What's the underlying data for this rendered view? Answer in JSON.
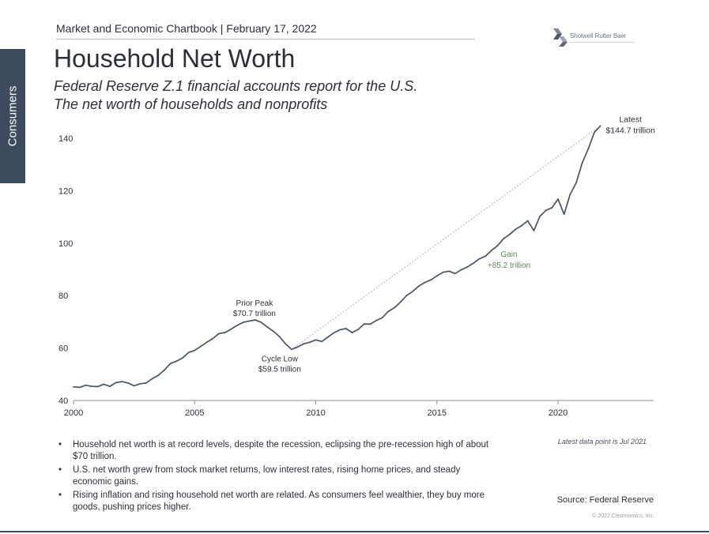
{
  "header": {
    "kicker": "Market and Economic Chartbook | February 17, 2022",
    "logo_text": "Shotwell Rutter Baer",
    "side_tab": "Consumers"
  },
  "title": "Household Net Worth",
  "subtitle_line1": "Federal Reserve Z.1 financial accounts report for the U.S.",
  "subtitle_line2": "The net worth of households and nonprofits",
  "chart_data": {
    "type": "line",
    "xlim": [
      2000,
      2024
    ],
    "ylim": [
      40,
      150
    ],
    "x_ticks": [
      "2000",
      "2005",
      "2010",
      "2015",
      "2020"
    ],
    "y_ticks": [
      "40",
      "60",
      "80",
      "100",
      "120",
      "140"
    ],
    "grid": false,
    "series": [
      {
        "color": "#4a5464",
        "points": [
          [
            2000.0,
            45.2
          ],
          [
            2000.25,
            45.0
          ],
          [
            2000.5,
            45.8
          ],
          [
            2000.75,
            45.4
          ],
          [
            2001.0,
            45.3
          ],
          [
            2001.25,
            46.2
          ],
          [
            2001.5,
            45.4
          ],
          [
            2001.75,
            46.8
          ],
          [
            2002.0,
            47.2
          ],
          [
            2002.25,
            46.7
          ],
          [
            2002.5,
            45.6
          ],
          [
            2002.75,
            46.4
          ],
          [
            2003.0,
            46.7
          ],
          [
            2003.25,
            48.3
          ],
          [
            2003.5,
            49.6
          ],
          [
            2003.75,
            51.6
          ],
          [
            2004.0,
            54.1
          ],
          [
            2004.25,
            55.0
          ],
          [
            2004.5,
            56.2
          ],
          [
            2004.75,
            58.3
          ],
          [
            2005.0,
            59.1
          ],
          [
            2005.25,
            60.6
          ],
          [
            2005.5,
            62.2
          ],
          [
            2005.75,
            63.6
          ],
          [
            2006.0,
            65.5
          ],
          [
            2006.25,
            65.9
          ],
          [
            2006.5,
            67.2
          ],
          [
            2006.75,
            68.6
          ],
          [
            2007.0,
            69.8
          ],
          [
            2007.25,
            70.3
          ],
          [
            2007.5,
            70.7
          ],
          [
            2007.75,
            69.8
          ],
          [
            2008.0,
            68.0
          ],
          [
            2008.25,
            66.4
          ],
          [
            2008.5,
            64.4
          ],
          [
            2008.75,
            61.6
          ],
          [
            2009.0,
            59.5
          ],
          [
            2009.25,
            60.4
          ],
          [
            2009.5,
            61.6
          ],
          [
            2009.75,
            62.2
          ],
          [
            2010.0,
            63.1
          ],
          [
            2010.25,
            62.5
          ],
          [
            2010.5,
            64.2
          ],
          [
            2010.75,
            65.8
          ],
          [
            2011.0,
            67.0
          ],
          [
            2011.25,
            67.4
          ],
          [
            2011.5,
            65.9
          ],
          [
            2011.75,
            67.1
          ],
          [
            2012.0,
            69.2
          ],
          [
            2012.25,
            69.1
          ],
          [
            2012.5,
            70.5
          ],
          [
            2012.75,
            71.6
          ],
          [
            2013.0,
            74.0
          ],
          [
            2013.25,
            75.4
          ],
          [
            2013.5,
            77.6
          ],
          [
            2013.75,
            80.0
          ],
          [
            2014.0,
            81.6
          ],
          [
            2014.25,
            83.6
          ],
          [
            2014.5,
            85.0
          ],
          [
            2014.75,
            86.0
          ],
          [
            2015.0,
            87.5
          ],
          [
            2015.25,
            88.9
          ],
          [
            2015.5,
            89.3
          ],
          [
            2015.75,
            88.4
          ],
          [
            2016.0,
            89.8
          ],
          [
            2016.25,
            90.9
          ],
          [
            2016.5,
            92.3
          ],
          [
            2016.75,
            94.0
          ],
          [
            2017.0,
            95.0
          ],
          [
            2017.25,
            97.2
          ],
          [
            2017.5,
            99.0
          ],
          [
            2017.75,
            101.7
          ],
          [
            2018.0,
            103.3
          ],
          [
            2018.25,
            105.3
          ],
          [
            2018.5,
            106.7
          ],
          [
            2018.75,
            108.5
          ],
          [
            2019.0,
            104.8
          ],
          [
            2019.25,
            110.2
          ],
          [
            2019.5,
            112.5
          ],
          [
            2019.75,
            113.5
          ],
          [
            2020.0,
            116.8
          ],
          [
            2020.25,
            111.0
          ],
          [
            2020.5,
            118.6
          ],
          [
            2020.75,
            123.0
          ],
          [
            2021.0,
            130.6
          ],
          [
            2021.25,
            136.0
          ],
          [
            2021.5,
            142.3
          ],
          [
            2021.75,
            144.7
          ]
        ]
      }
    ],
    "trend_line": {
      "from": [
        2009.0,
        59.5
      ],
      "to": [
        2021.75,
        144.7
      ],
      "color": "#b0b4ba"
    },
    "annotations": {
      "prior_peak": {
        "label": "Prior Peak",
        "value": "$70.7 trillion",
        "x": 2007.5,
        "y": 70.7
      },
      "cycle_low": {
        "label": "Cycle Low",
        "value": "$59.5 trillion",
        "x": 2009.0,
        "y": 59.5
      },
      "gain": {
        "label": "Gain",
        "value": "+85.2 trillion",
        "color": "#5e8a55"
      },
      "latest": {
        "label": "Latest",
        "value": "$144.7 trillion",
        "x": 2021.75,
        "y": 144.7
      }
    }
  },
  "bullets": [
    "Household net worth is at record levels, despite the recession, eclipsing the pre-recession high of about $70 trillion.",
    "U.S. net worth grew from stock market returns, low interest rates, rising home prices, and steady economic gains.",
    "Rising inflation and rising household net worth are related. As consumers feel wealthier, they buy more goods, pushing prices higher."
  ],
  "footer": {
    "note": "Latest data point is Jul 2021",
    "source": "Source: Federal Reserve",
    "copyright": "© 2022 Clearnomics, Inc."
  },
  "colors": {
    "sidebar": "#3e4a5e",
    "line": "#4a5464",
    "gain_text": "#5e8a55",
    "trend": "#b0b4ba"
  }
}
